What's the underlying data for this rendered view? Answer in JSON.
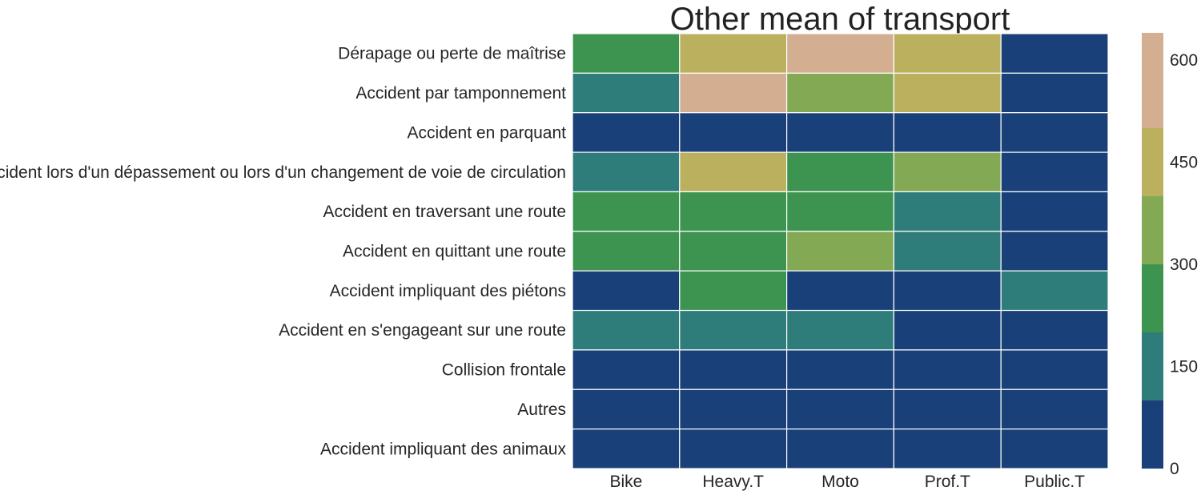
{
  "chart_data": {
    "type": "heatmap",
    "title": "Other mean of transport",
    "xlabel": "",
    "ylabel": "",
    "x_categories": [
      "Bike",
      "Heavy.T",
      "Moto",
      "Prof.T",
      "Public.T"
    ],
    "y_categories": [
      "Dérapage ou perte de maîtrise",
      "Accident par tamponnement",
      "Accident en parquant",
      "Accident lors d'un dépassement ou lors d'un changement de voie de circulation",
      "Accident en traversant une route",
      "Accident en quittant une route",
      "Accident impliquant des piétons",
      "Accident en s'engageant sur une route",
      "Collision frontale",
      "Autres",
      "Accident impliquant des animaux"
    ],
    "values": [
      [
        270,
        400,
        600,
        400,
        40
      ],
      [
        180,
        600,
        380,
        480,
        40
      ],
      [
        30,
        40,
        40,
        40,
        5
      ],
      [
        180,
        480,
        260,
        380,
        10
      ],
      [
        270,
        260,
        260,
        180,
        10
      ],
      [
        270,
        260,
        380,
        180,
        10
      ],
      [
        40,
        260,
        40,
        40,
        180
      ],
      [
        180,
        180,
        180,
        40,
        10
      ],
      [
        30,
        40,
        30,
        20,
        5
      ],
      [
        30,
        40,
        30,
        20,
        5
      ],
      [
        5,
        10,
        5,
        5,
        5
      ]
    ],
    "colorbar": {
      "range": [
        0,
        640
      ],
      "boundaries": [
        0,
        100,
        200,
        300,
        400,
        500,
        640
      ],
      "colors": [
        "#1a4079",
        "#2e7d7b",
        "#3d9450",
        "#84a955",
        "#bab05e",
        "#d4ae90"
      ],
      "ticks": [
        "0",
        "150",
        "300",
        "450",
        "600"
      ],
      "tick_values": [
        0,
        150,
        300,
        450,
        600
      ]
    }
  }
}
